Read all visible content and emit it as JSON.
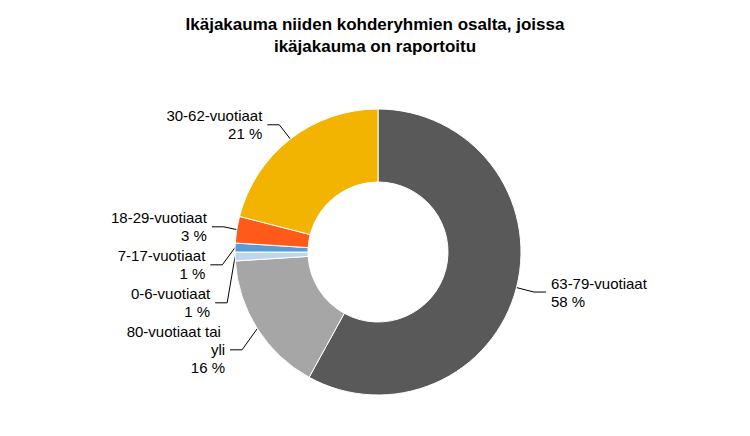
{
  "chart_data": {
    "type": "pie",
    "title": "Ikäjakauma niiden kohderyhmien osalta, joissa\nikäjakauma on raportoitu",
    "categories": [
      "63-79-vuotiaat",
      "80-vuotiaat tai yli",
      "0-6-vuotiaat",
      "7-17-vuotiaat",
      "18-29-vuotiaat",
      "30-62-vuotiaat"
    ],
    "values": [
      58,
      16,
      1,
      1,
      3,
      21
    ],
    "value_labels": [
      "58 %",
      "16 %",
      "1 %",
      "1 %",
      "3 %",
      "21 %"
    ],
    "colors": [
      "#595959",
      "#a6a6a6",
      "#bdd7ee",
      "#5b9bd5",
      "#ff5a1a",
      "#f2b400"
    ],
    "data_labels": true
  }
}
